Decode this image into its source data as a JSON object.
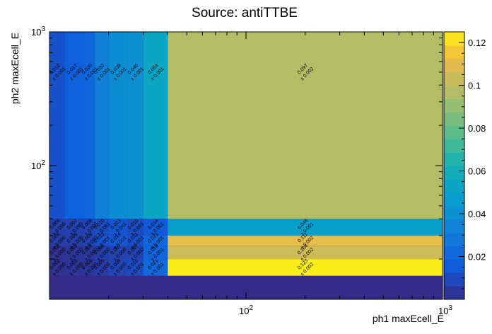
{
  "chart_data": {
    "type": "heatmap",
    "title": "Source: antiTTBE",
    "xlabel": "ph1 maxEcell_E",
    "ylabel": "ph2 maxEcell_E",
    "x_scale": "log",
    "y_scale": "log",
    "xlim": [
      10,
      1000
    ],
    "ylim": [
      10,
      1000
    ],
    "x_tick_labels": [
      "10^2",
      "10^3"
    ],
    "y_tick_labels": [
      "10^2",
      "10^3"
    ],
    "x_edges": [
      10,
      12,
      15,
      17,
      20,
      25,
      30,
      40,
      1000
    ],
    "y_edges": [
      10,
      15,
      20,
      25,
      30,
      40,
      1000
    ],
    "colorbar": {
      "min": 0.0,
      "max": 0.125,
      "tick_labels": [
        "0.02",
        "0.04",
        "0.06",
        "0.08",
        "0.1",
        "0.12"
      ]
    },
    "cells": [
      {
        "x": 0,
        "y": 5,
        "value": 0.012,
        "error": 0.001
      },
      {
        "x": 1,
        "y": 5,
        "value": 0.017,
        "error": 0.001
      },
      {
        "x": 2,
        "y": 5,
        "value": 0.02,
        "error": 0.001
      },
      {
        "x": 3,
        "y": 5,
        "value": 0.032,
        "error": 0.001
      },
      {
        "x": 4,
        "y": 5,
        "value": 0.039,
        "error": 0.001
      },
      {
        "x": 5,
        "y": 5,
        "value": 0.04,
        "error": 0.001
      },
      {
        "x": 6,
        "y": 5,
        "value": 0.053,
        "error": 0.001
      },
      {
        "x": 7,
        "y": 5,
        "value": 0.097,
        "error": 0.002
      },
      {
        "x": 0,
        "y": 4,
        "value": 0.006,
        "error": 0.0
      },
      {
        "x": 1,
        "y": 4,
        "value": 0.007,
        "error": 0.0
      },
      {
        "x": 2,
        "y": 4,
        "value": 0.008,
        "error": 0.0
      },
      {
        "x": 3,
        "y": 4,
        "value": 0.01,
        "error": 0.001
      },
      {
        "x": 4,
        "y": 4,
        "value": 0.013,
        "error": 0.001
      },
      {
        "x": 5,
        "y": 4,
        "value": 0.01,
        "error": 0.001
      },
      {
        "x": 6,
        "y": 4,
        "value": 0.014,
        "error": 0.001
      },
      {
        "x": 7,
        "y": 4,
        "value": 0.048,
        "error": 0.001
      },
      {
        "x": 0,
        "y": 3,
        "value": 0.006,
        "error": 0.0
      },
      {
        "x": 1,
        "y": 3,
        "value": 0.006,
        "error": 0.0
      },
      {
        "x": 2,
        "y": 3,
        "value": 0.008,
        "error": 0.0
      },
      {
        "x": 3,
        "y": 3,
        "value": 0.012,
        "error": 0.001
      },
      {
        "x": 4,
        "y": 3,
        "value": 0.014,
        "error": 0.001
      },
      {
        "x": 5,
        "y": 3,
        "value": 0.011,
        "error": 0.001
      },
      {
        "x": 6,
        "y": 3,
        "value": 0.021,
        "error": 0.001
      },
      {
        "x": 7,
        "y": 3,
        "value": 0.111,
        "error": 0.002
      },
      {
        "x": 0,
        "y": 2,
        "value": 0.002,
        "error": 0.0
      },
      {
        "x": 1,
        "y": 2,
        "value": 0.003,
        "error": 0.0
      },
      {
        "x": 2,
        "y": 2,
        "value": 0.004,
        "error": 0.0
      },
      {
        "x": 3,
        "y": 2,
        "value": 0.006,
        "error": 0.0
      },
      {
        "x": 4,
        "y": 2,
        "value": 0.007,
        "error": 0.0
      },
      {
        "x": 5,
        "y": 2,
        "value": 0.007,
        "error": 0.0
      },
      {
        "x": 6,
        "y": 2,
        "value": 0.019,
        "error": 0.001
      },
      {
        "x": 7,
        "y": 2,
        "value": 0.104,
        "error": 0.002
      },
      {
        "x": 0,
        "y": 1,
        "value": 0.002,
        "error": 0.0
      },
      {
        "x": 1,
        "y": 1,
        "value": 0.003,
        "error": 0.0
      },
      {
        "x": 2,
        "y": 1,
        "value": 0.003,
        "error": 0.0
      },
      {
        "x": 3,
        "y": 1,
        "value": 0.005,
        "error": 0.0
      },
      {
        "x": 4,
        "y": 1,
        "value": 0.008,
        "error": 0.0
      },
      {
        "x": 5,
        "y": 1,
        "value": 0.01,
        "error": 0.001
      },
      {
        "x": 6,
        "y": 1,
        "value": 0.021,
        "error": 0.001
      },
      {
        "x": 7,
        "y": 1,
        "value": 0.123,
        "error": 0.002
      }
    ]
  }
}
